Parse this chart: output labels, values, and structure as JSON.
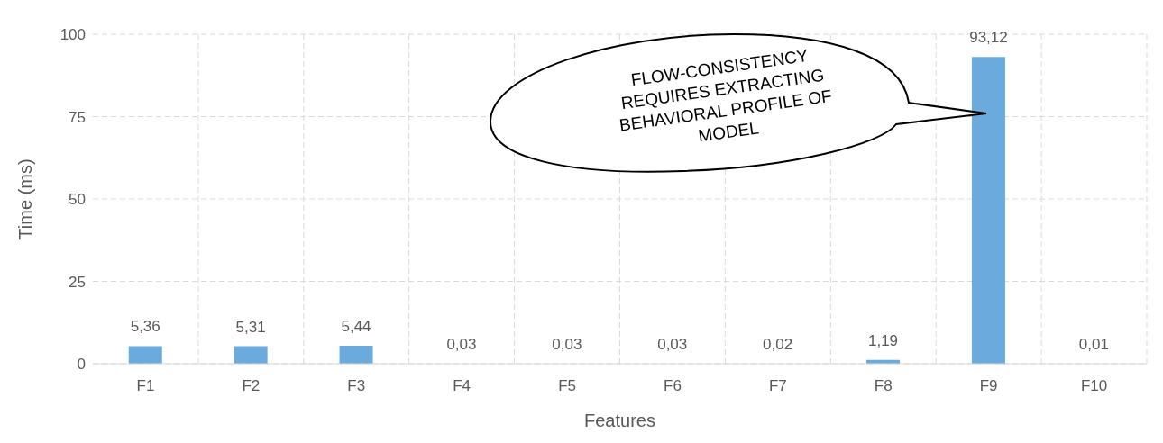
{
  "chart_data": {
    "type": "bar",
    "xlabel": "Features",
    "ylabel": "Time (ms)",
    "categories": [
      "F1",
      "F2",
      "F3",
      "F4",
      "F5",
      "F6",
      "F7",
      "F8",
      "F9",
      "F10"
    ],
    "values": [
      5.36,
      5.31,
      5.44,
      0.03,
      0.03,
      0.03,
      0.02,
      1.19,
      93.12,
      0.01
    ],
    "value_labels": [
      "5,36",
      "5,31",
      "5,44",
      "0,03",
      "0,03",
      "0,03",
      "0,02",
      "1,19",
      "93,12",
      "0,01"
    ],
    "color": "#6aaadd",
    "ylim": [
      0,
      100
    ],
    "yticks": [
      0,
      25,
      50,
      75,
      100
    ],
    "grid": true,
    "annotations": [
      "FLOW-CONSISTENCY REQUIRES EXTRACTING BEHAVIORAL PROFILE OF MODEL"
    ]
  }
}
